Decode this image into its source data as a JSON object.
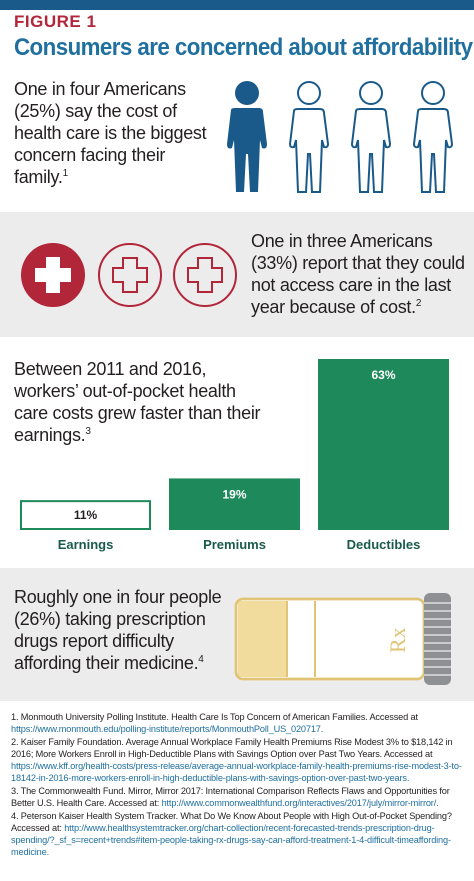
{
  "figure_label": "FIGURE 1",
  "headline": "Consumers are concerned about affordability",
  "colors": {
    "blue": "#1f6f9f",
    "dark_blue": "#1a5a8a",
    "red": "#b2263a",
    "green": "#1e8a5c",
    "pill_yellow": "#f1dc9e",
    "panel_gray": "#ececec"
  },
  "stat1": {
    "text": "One in four Americans (25%) say the cost of health care is the biggest concern facing their family.",
    "ref": "1",
    "icons": [
      "person-filled-icon",
      "person-outline-icon",
      "person-outline-icon",
      "person-outline-icon"
    ]
  },
  "stat2": {
    "text": "One in three Americans (33%) report that they could not access care in the last year because of cost.",
    "ref": "2",
    "icons": [
      "medical-cross-filled-icon",
      "medical-cross-outline-icon",
      "medical-cross-outline-icon"
    ]
  },
  "stat3": {
    "text": "Between 2011 and 2016, workers’ out-of-pocket health care costs grew faster than their earnings.",
    "ref": "3"
  },
  "chart_data": {
    "type": "bar",
    "categories": [
      "Earnings",
      "Premiums",
      "Deductibles"
    ],
    "values": [
      11,
      19,
      63
    ],
    "value_labels": [
      "11%",
      "19%",
      "63%"
    ],
    "bar_styles": [
      "outline",
      "filled",
      "filled"
    ],
    "ylim": [
      0,
      63
    ],
    "title": "",
    "xlabel": "",
    "ylabel": ""
  },
  "stat4": {
    "text": "Roughly one in four people (26%) taking prescription drugs report difficulty affording their medicine.",
    "ref": "4",
    "pill_label": "Rx"
  },
  "references": [
    {
      "num": "1.",
      "text": "Monmouth University Polling Institute. Health Care Is Top Concern of American Families. Accessed at ",
      "url": "https://www.monmouth.edu/polling-institute/reports/MonmouthPoll_US_020717."
    },
    {
      "num": "2.",
      "text": "Kaiser Family Foundation. Average Annual Workplace Family Health Premiums Rise Modest 3% to $18,142 in 2016; More Workers Enroll in High-Deductible Plans with Savings Option over Past Two Years. Accessed at ",
      "url": "https://www.kff.org/health-costs/press-release/average-annual-workplace-family-health-premiums-rise-modest-3-to-18142-in-2016-more-workers-enroll-in-high-deductible-plans-with-savings-option-over-past-two-years."
    },
    {
      "num": "3.",
      "text": "The Commonwealth Fund. Mirror, Mirror 2017: International Comparison Reflects Flaws and Opportunities for Better U.S. Health Care. Accessed at: ",
      "url": "http://www.commonwealthfund.org/interactives/2017/july/mirror-mirror/."
    },
    {
      "num": "4.",
      "text": "Peterson Kaiser Health System Tracker. What Do We Know About People with High Out-of-Pocket Spending? Accessed at: ",
      "url": "http://www.healthsystemtracker.org/chart-collection/recent-forecasted-trends-prescription-drug-spending/?_sf_s=recent+trends#item-people-taking-rx-drugs-say-can-afford-treatment-1-4-difficult-timeaffording-medicine."
    }
  ]
}
